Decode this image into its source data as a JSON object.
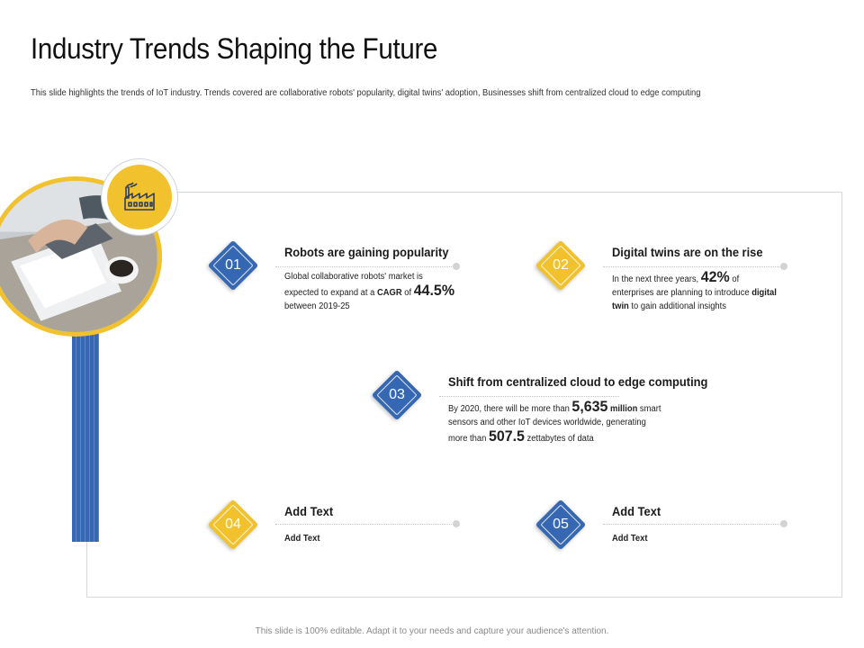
{
  "slide": {
    "title": "Industry Trends Shaping the Future",
    "subtitle": "This slide highlights  the trends of IoT industry.  Trends covered are collaborative  robots' popularity,  digital twins' adoption,  Businesses shift  from centralized cloud to edge computing",
    "footer": "This slide is 100% editable. Adapt it to your needs and capture your audience's attention."
  },
  "icons": {
    "factory": "factory-icon",
    "photo": "business-meeting-photo"
  },
  "colors": {
    "blue": "#3567b3",
    "yellow": "#f2c12e"
  },
  "items": [
    {
      "number": "01",
      "title": "Robots are gaining popularity",
      "l1": "Global collaborative  robots' market is",
      "l2a": "expected to expand at a ",
      "l2b": "CAGR",
      "l2c": " of ",
      "l2big": "44.5%",
      "l3": "between 2019-25"
    },
    {
      "number": "02",
      "title": "Digital twins are on the rise",
      "l1a": "In the next three years, ",
      "l1big": "42%",
      "l1b": " of",
      "l2a": "enterprises are planning  to introduce ",
      "l2b": "digital",
      "l3a": "twin",
      "l3b": " to gain additional  insights"
    },
    {
      "number": "03",
      "title": "Shift from centralized cloud to edge computing",
      "l1a": "By 2020, there will be more than ",
      "l1big": "5,635",
      "l1b": " million",
      "l1c": " smart",
      "l2": "sensors and other IoT devices worldwide, generating",
      "l3a": "more than ",
      "l3big": "507.5",
      "l3b": " zettabytes of data"
    },
    {
      "number": "04",
      "title": "Add Text",
      "body": "Add Text"
    },
    {
      "number": "05",
      "title": "Add Text",
      "body": "Add Text"
    }
  ]
}
